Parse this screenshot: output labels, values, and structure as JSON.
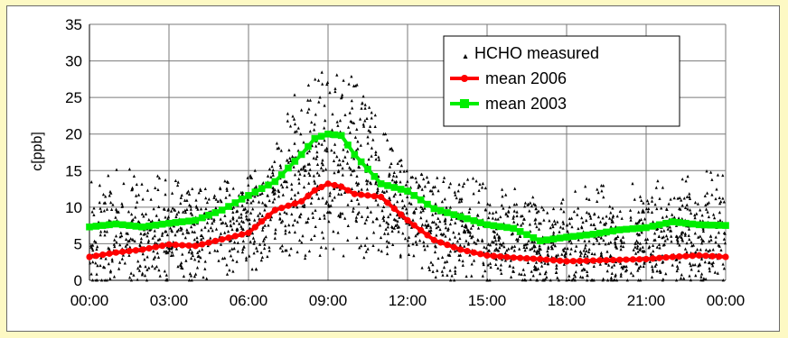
{
  "chart_data": {
    "type": "scatter",
    "title": "",
    "xlabel": "",
    "ylabel": "c[ppb]",
    "ylim": [
      0,
      35
    ],
    "xlim": [
      0,
      24
    ],
    "grid": true,
    "legend_position": "top-right",
    "x_ticks": [
      "00:00",
      "03:00",
      "06:00",
      "09:00",
      "12:00",
      "15:00",
      "18:00",
      "21:00",
      "00:00"
    ],
    "y_ticks": [
      0,
      5,
      10,
      15,
      20,
      25,
      30,
      35
    ],
    "colors": {
      "measured": "#000000",
      "mean2006": "#ff0000",
      "mean2003": "#00ee00"
    },
    "series": [
      {
        "name": "HCHO measured",
        "kind": "scatter",
        "envelope_hours": [
          0,
          2,
          4,
          6,
          7,
          8,
          9,
          9.5,
          10,
          11,
          12,
          13,
          15,
          17,
          18,
          20,
          22,
          23,
          24
        ],
        "envelope_low": [
          0,
          0,
          0,
          1,
          2,
          3,
          3,
          3,
          3,
          2,
          1,
          0,
          0,
          0,
          0,
          0,
          0,
          0,
          0
        ],
        "envelope_high": [
          16,
          15,
          13,
          14,
          18,
          28,
          31,
          30,
          28,
          22,
          15,
          14,
          14,
          12,
          13,
          13,
          14,
          15,
          15
        ],
        "points": 2200
      },
      {
        "name": "mean 2006",
        "kind": "line",
        "x": [
          0,
          1,
          2,
          3,
          4,
          5,
          6,
          7,
          8,
          8.5,
          9,
          9.5,
          10,
          11,
          12,
          13,
          14,
          15,
          16,
          17,
          18,
          19,
          20,
          21,
          22,
          23,
          24
        ],
        "y": [
          3.2,
          3.8,
          4.2,
          4.9,
          4.7,
          5.6,
          6.5,
          9.6,
          10.8,
          12.3,
          13.2,
          12.8,
          11.8,
          11.4,
          8.2,
          5.5,
          4.2,
          3.4,
          3.1,
          2.9,
          2.6,
          2.7,
          2.8,
          2.9,
          3.2,
          3.4,
          3.2
        ]
      },
      {
        "name": "mean 2003",
        "kind": "line",
        "x": [
          0,
          1,
          2,
          3,
          4,
          5,
          6,
          7,
          8,
          8.5,
          9,
          9.5,
          10,
          11,
          12,
          13,
          14,
          15,
          16,
          17,
          18,
          19,
          20,
          21,
          22,
          23,
          24
        ],
        "y": [
          7.3,
          7.7,
          7.3,
          7.8,
          8.2,
          9.6,
          11.6,
          13.5,
          17.2,
          19.4,
          20.0,
          19.8,
          17.2,
          13.2,
          12.2,
          9.8,
          8.7,
          7.6,
          7.1,
          5.4,
          5.9,
          6.3,
          6.9,
          7.2,
          8.0,
          7.6,
          7.5
        ]
      }
    ]
  }
}
